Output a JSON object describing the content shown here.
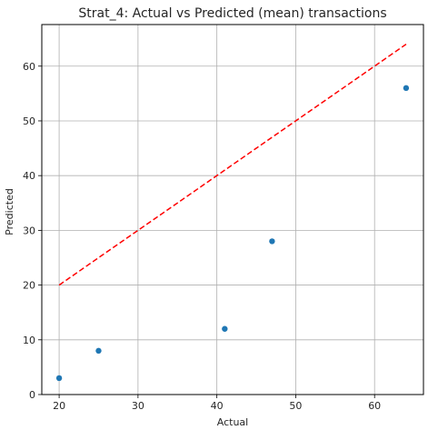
{
  "chart_data": {
    "type": "scatter",
    "title": "Strat_4: Actual vs Predicted (mean) transactions",
    "xlabel": "Actual",
    "ylabel": "Predicted",
    "xlim": [
      17.8,
      66.2
    ],
    "ylim": [
      0,
      67.6
    ],
    "xticks": [
      20,
      30,
      40,
      50,
      60
    ],
    "yticks": [
      0,
      10,
      20,
      30,
      40,
      50,
      60
    ],
    "grid": true,
    "points": [
      {
        "x": 20,
        "y": 3
      },
      {
        "x": 25,
        "y": 8
      },
      {
        "x": 41,
        "y": 12
      },
      {
        "x": 47,
        "y": 28
      },
      {
        "x": 64,
        "y": 56
      }
    ],
    "reference_line": {
      "x": [
        20,
        64
      ],
      "y": [
        20,
        64
      ],
      "style": "dashed"
    },
    "colors": {
      "points": "#1f77b4",
      "reference_line": "#ff0000",
      "grid": "#b0b0b0"
    }
  }
}
